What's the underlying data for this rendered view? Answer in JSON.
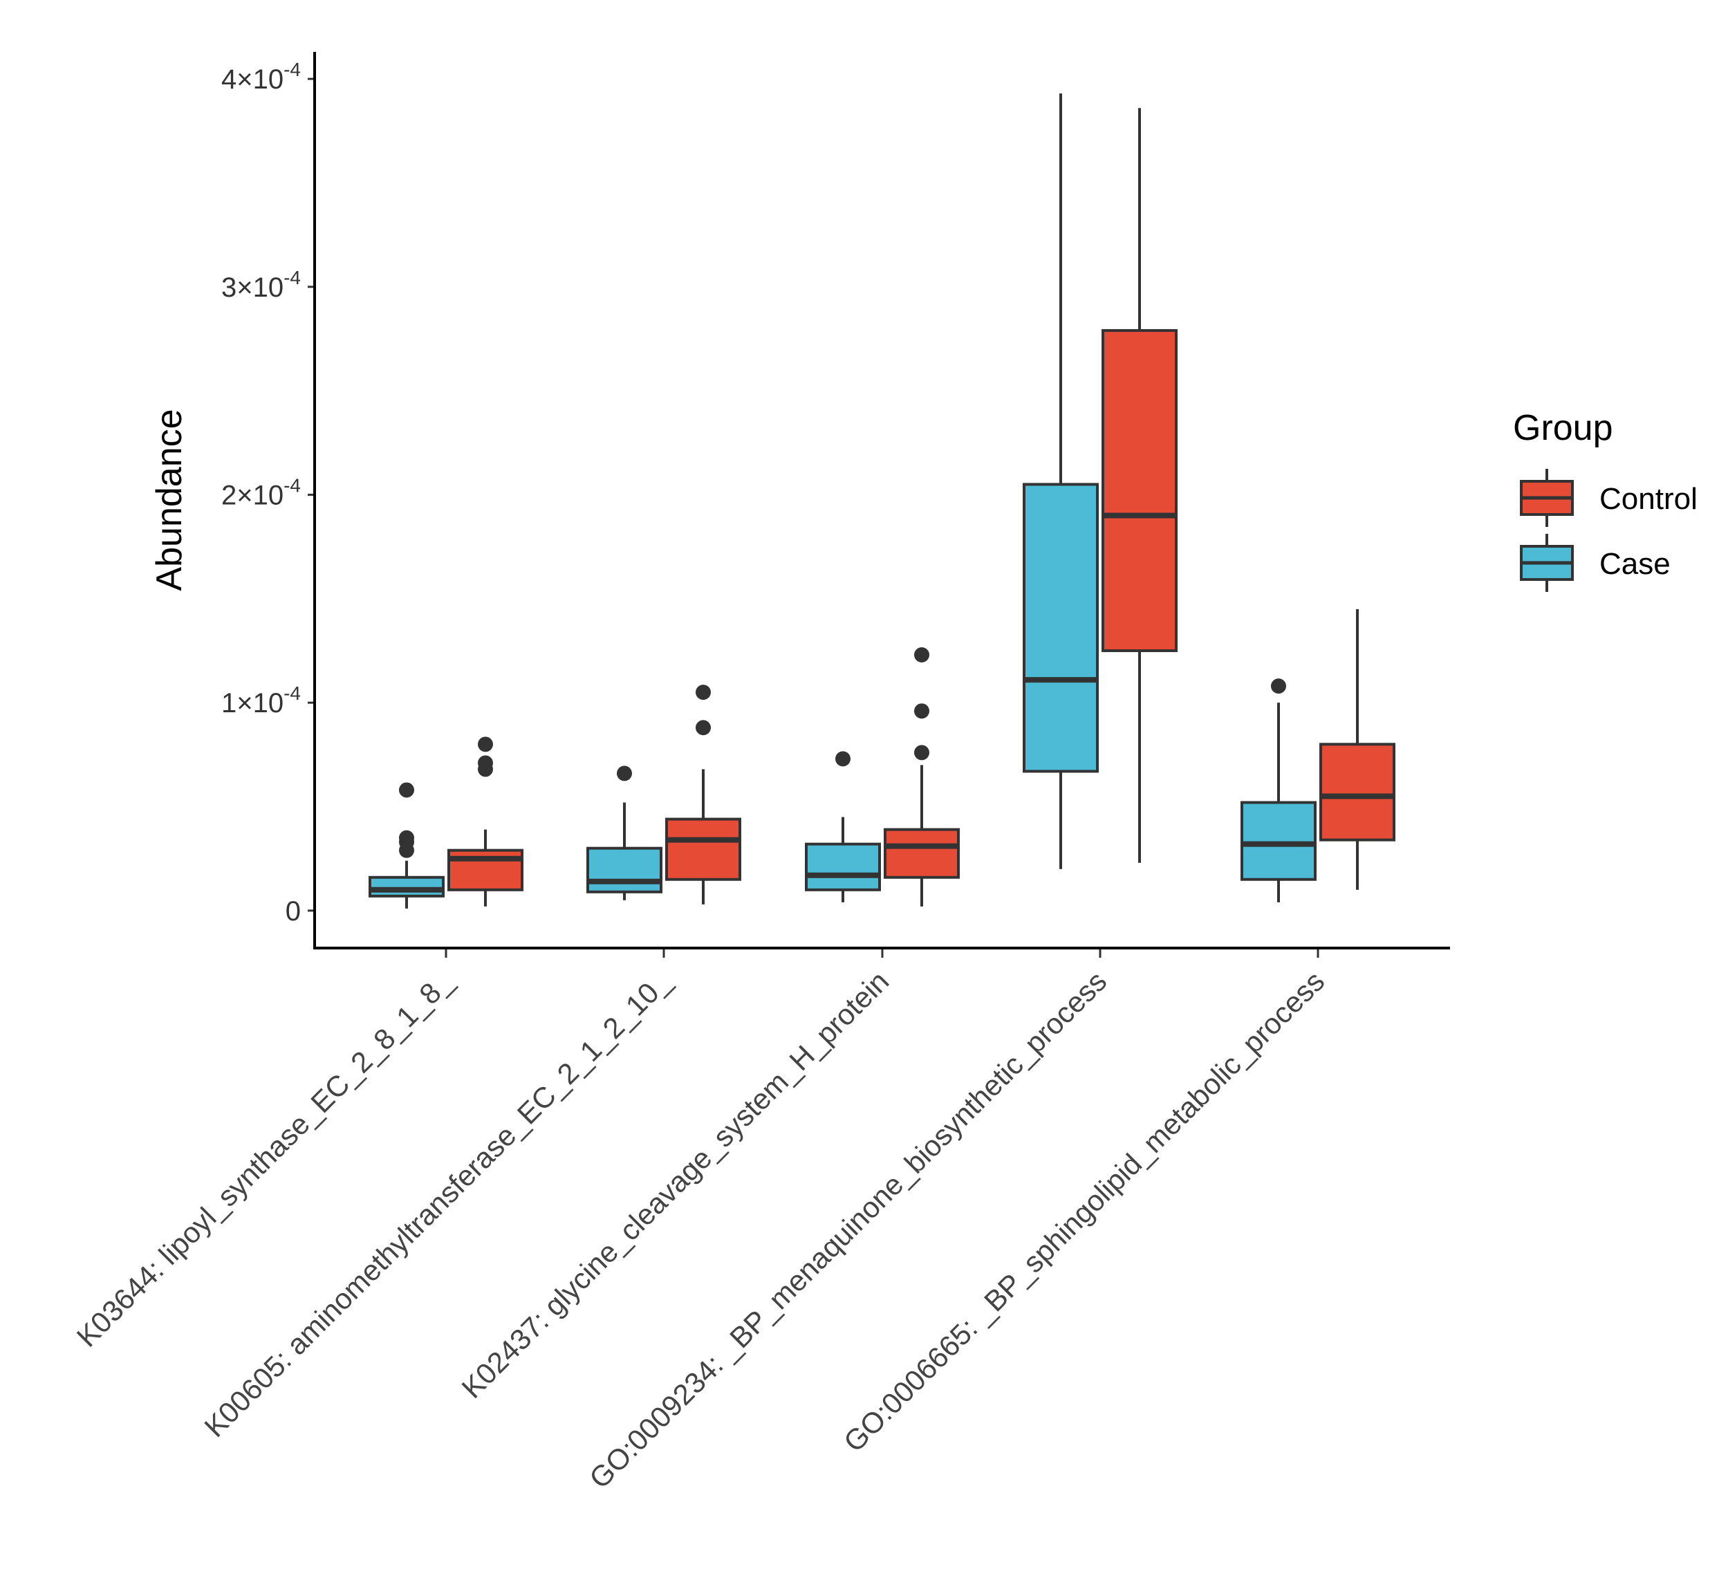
{
  "chart_data": {
    "type": "boxplot",
    "title": "",
    "xlabel": "",
    "ylabel": "Abundance",
    "ylim": [
      -1.8e-05,
      0.000413
    ],
    "yticks": [
      {
        "value": 0,
        "mantissa": "0",
        "exponent": ""
      },
      {
        "value": 0.0001,
        "mantissa": "1×10",
        "exponent": "-4"
      },
      {
        "value": 0.0002,
        "mantissa": "2×10",
        "exponent": "-4"
      },
      {
        "value": 0.0003,
        "mantissa": "3×10",
        "exponent": "-4"
      },
      {
        "value": 0.0004,
        "mantissa": "4×10",
        "exponent": "-4"
      }
    ],
    "categories": [
      "K03644: lipoyl_synthase_EC_2_8_1_8_",
      "K00605: aminomethyltransferase_EC_2_1_2_10_",
      "K02437: glycine_cleavage_system_H_protein",
      "GO:0009234: _BP_menaquinone_biosynthetic_process",
      "GO:0006665: _BP_sphingolipid_metabolic_process"
    ],
    "legend": {
      "title": "Group",
      "position": "right",
      "entries": [
        {
          "name": "Control",
          "color": "#E64B35"
        },
        {
          "name": "Case",
          "color": "#4DBBD5"
        }
      ]
    },
    "series": [
      {
        "name": "Case",
        "color": "#4DBBD5",
        "boxes": [
          {
            "min": 1e-06,
            "q1": 7e-06,
            "median": 1e-05,
            "q3": 1.6e-05,
            "max": 2.4e-05,
            "outliers": [
              5.8e-05,
              3.5e-05,
              3.3e-05,
              2.9e-05
            ]
          },
          {
            "min": 5e-06,
            "q1": 9e-06,
            "median": 1.4e-05,
            "q3": 3e-05,
            "max": 5.2e-05,
            "outliers": [
              6.6e-05
            ]
          },
          {
            "min": 4e-06,
            "q1": 1e-05,
            "median": 1.7e-05,
            "q3": 3.2e-05,
            "max": 4.5e-05,
            "outliers": [
              7.3e-05
            ]
          },
          {
            "min": 2e-05,
            "q1": 6.7e-05,
            "median": 0.000111,
            "q3": 0.000205,
            "max": 0.000393,
            "outliers": []
          },
          {
            "min": 4e-06,
            "q1": 1.5e-05,
            "median": 3.2e-05,
            "q3": 5.2e-05,
            "max": 0.0001,
            "outliers": [
              0.000108
            ]
          }
        ]
      },
      {
        "name": "Control",
        "color": "#E64B35",
        "boxes": [
          {
            "min": 2e-06,
            "q1": 1e-05,
            "median": 2.5e-05,
            "q3": 2.9e-05,
            "max": 3.9e-05,
            "outliers": [
              8e-05,
              7.1e-05,
              6.8e-05
            ]
          },
          {
            "min": 3e-06,
            "q1": 1.5e-05,
            "median": 3.4e-05,
            "q3": 4.4e-05,
            "max": 6.8e-05,
            "outliers": [
              0.000105,
              8.8e-05
            ]
          },
          {
            "min": 2e-06,
            "q1": 1.6e-05,
            "median": 3.1e-05,
            "q3": 3.9e-05,
            "max": 7e-05,
            "outliers": [
              0.000123,
              9.6e-05,
              7.6e-05
            ]
          },
          {
            "min": 2.3e-05,
            "q1": 0.000125,
            "median": 0.00019,
            "q3": 0.000279,
            "max": 0.000386,
            "outliers": []
          },
          {
            "min": 1e-05,
            "q1": 3.4e-05,
            "median": 5.5e-05,
            "q3": 8e-05,
            "max": 0.000145,
            "outliers": []
          }
        ]
      }
    ]
  }
}
